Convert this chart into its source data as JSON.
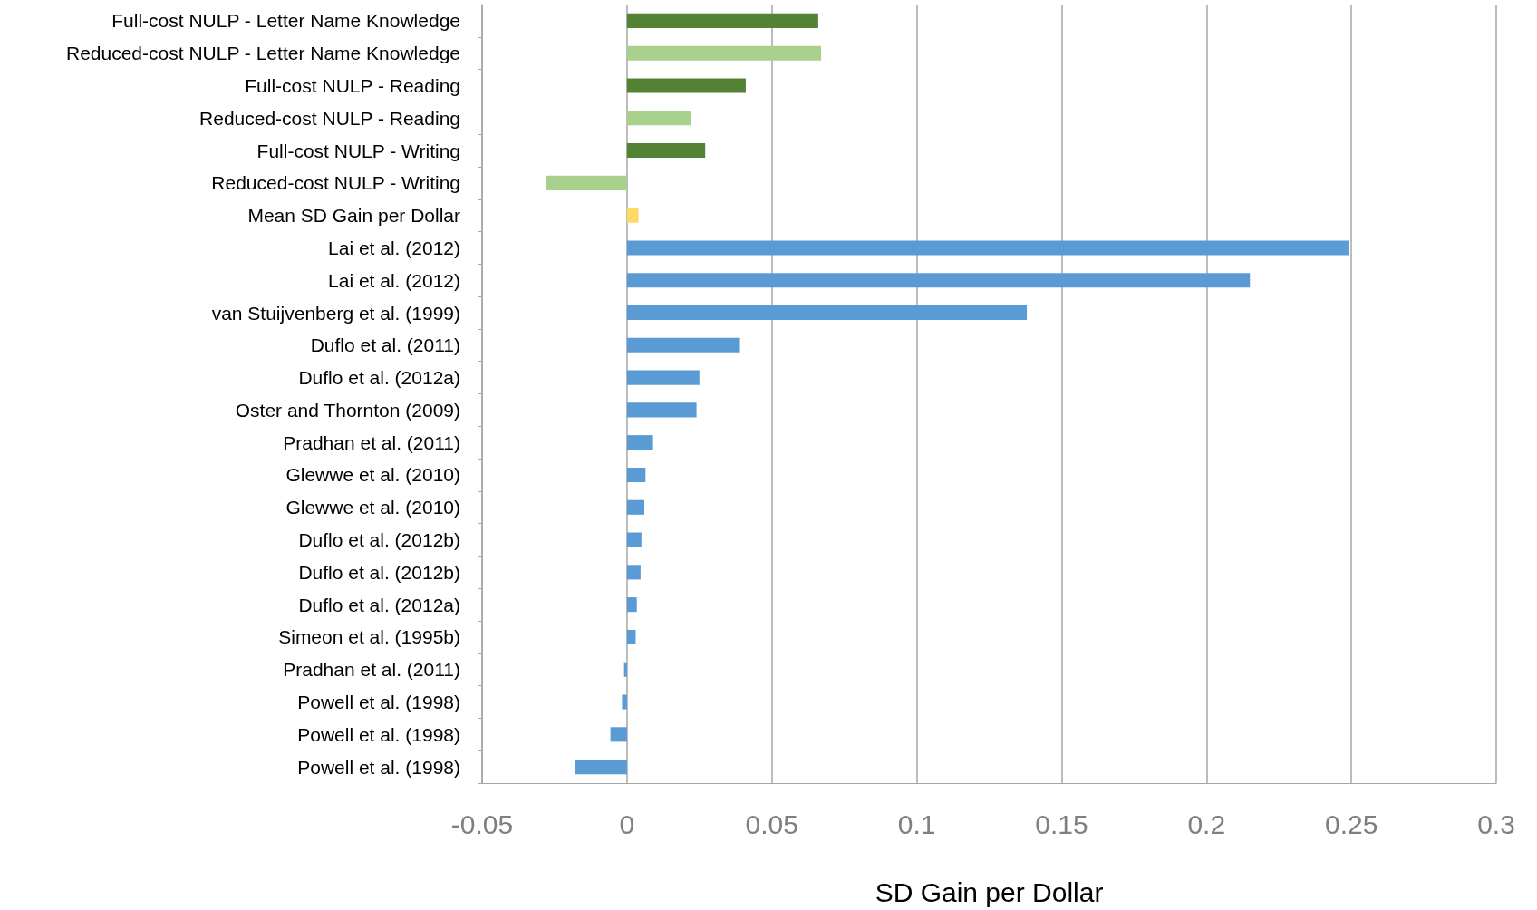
{
  "chart_data": {
    "type": "bar",
    "orientation": "horizontal",
    "xlabel": "SD Gain per Dollar",
    "categories": [
      "Full-cost NULP - Letter Name Knowledge",
      "Reduced-cost NULP - Letter Name Knowledge",
      "Full-cost NULP - Reading",
      "Reduced-cost NULP - Reading",
      "Full-cost NULP - Writing",
      "Reduced-cost NULP - Writing",
      "Mean SD Gain per Dollar",
      "Lai et al. (2012)",
      "Lai et al. (2012)",
      "van Stuijvenberg et al. (1999)",
      "Duflo et al. (2011)",
      "Duflo et al. (2012a)",
      "Oster and Thornton (2009)",
      "Pradhan et al. (2011)",
      "Glewwe et al. (2010)",
      "Glewwe et al. (2010)",
      "Duflo et al. (2012b)",
      "Duflo et al. (2012b)",
      "Duflo et al. (2012a)",
      "Simeon et al. (1995b)",
      "Pradhan et al. (2011)",
      "Powell et al. (1998)",
      "Powell et al. (1998)",
      "Powell et al. (1998)"
    ],
    "values": [
      0.066,
      0.067,
      0.041,
      0.022,
      0.027,
      -0.028,
      0.004,
      0.249,
      0.215,
      0.138,
      0.039,
      0.025,
      0.024,
      0.009,
      0.0064,
      0.006,
      0.005,
      0.0047,
      0.0034,
      0.003,
      -0.001,
      -0.0017,
      -0.0057,
      -0.0179
    ],
    "colors": [
      "#548235",
      "#a9d18e",
      "#548235",
      "#a9d18e",
      "#548235",
      "#a9d18e",
      "#ffd966",
      "#5b9bd5",
      "#5b9bd5",
      "#5b9bd5",
      "#5b9bd5",
      "#5b9bd5",
      "#5b9bd5",
      "#5b9bd5",
      "#5b9bd5",
      "#5b9bd5",
      "#5b9bd5",
      "#5b9bd5",
      "#5b9bd5",
      "#5b9bd5",
      "#5b9bd5",
      "#5b9bd5",
      "#5b9bd5",
      "#5b9bd5"
    ],
    "xlim": [
      -0.05,
      0.3
    ],
    "xticks": [
      -0.05,
      0,
      0.05,
      0.1,
      0.15,
      0.2,
      0.25,
      0.3
    ],
    "grid": "x"
  }
}
